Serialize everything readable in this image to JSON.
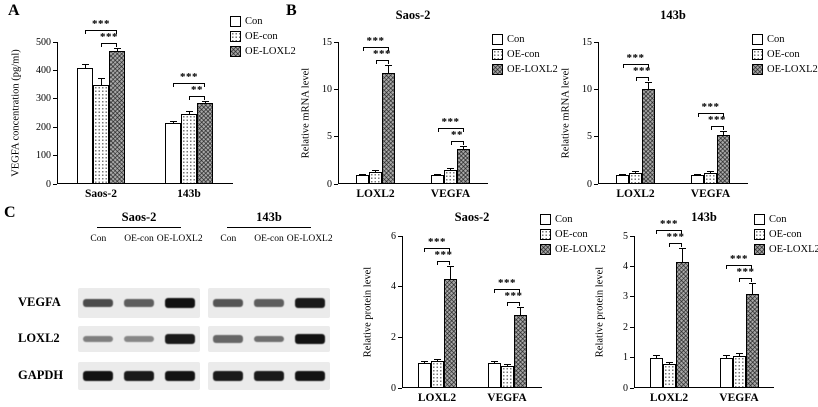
{
  "panels": {
    "a": "A",
    "b": "B",
    "c": "C"
  },
  "colors": {
    "background": "#ffffff",
    "bar_outline": "#000000",
    "con_fill": "#ffffff",
    "oe_con_fill": "dotted-white",
    "oe_loxl2_fill": "#a8a8a8",
    "band_color": "#0a0a0a"
  },
  "legend_labels": [
    "Con",
    "OE-con",
    "OE-LOXL2"
  ],
  "chart_data": [
    {
      "id": "panelA",
      "type": "bar",
      "title": "",
      "ylabel": "VEGFA concentration (pg/ml)",
      "ylim": [
        0,
        500
      ],
      "yticks": [
        0,
        100,
        200,
        300,
        400,
        500
      ],
      "categories": [
        "Saos-2",
        "143b"
      ],
      "series": [
        {
          "name": "Con",
          "values": [
            410,
            215
          ],
          "errors": [
            12,
            8
          ]
        },
        {
          "name": "OE-con",
          "values": [
            350,
            247
          ],
          "errors": [
            22,
            10
          ]
        },
        {
          "name": "OE-LOXL2",
          "values": [
            468,
            285
          ],
          "errors": [
            10,
            8
          ]
        }
      ],
      "significance": [
        {
          "category": "Saos-2",
          "from": "Con",
          "to": "OE-LOXL2",
          "label": "***"
        },
        {
          "category": "Saos-2",
          "from": "OE-con",
          "to": "OE-LOXL2",
          "label": "***"
        },
        {
          "category": "143b",
          "from": "Con",
          "to": "OE-LOXL2",
          "label": "***"
        },
        {
          "category": "143b",
          "from": "OE-con",
          "to": "OE-LOXL2",
          "label": "**"
        }
      ],
      "legend_position": "right"
    },
    {
      "id": "b_saos2",
      "type": "bar",
      "title": "Saos-2",
      "ylabel": "Relative mRNA level",
      "ylim": [
        0,
        15
      ],
      "yticks": [
        0,
        5,
        10,
        15
      ],
      "categories": [
        "LOXL2",
        "VEGFA"
      ],
      "series": [
        {
          "name": "Con",
          "values": [
            1.0,
            1.0
          ],
          "errors": [
            0.1,
            0.1
          ]
        },
        {
          "name": "OE-con",
          "values": [
            1.3,
            1.5
          ],
          "errors": [
            0.15,
            0.2
          ]
        },
        {
          "name": "OE-LOXL2",
          "values": [
            11.7,
            3.7
          ],
          "errors": [
            0.9,
            0.3
          ]
        }
      ],
      "significance": [
        {
          "category": "LOXL2",
          "from": "Con",
          "to": "OE-LOXL2",
          "label": "***"
        },
        {
          "category": "LOXL2",
          "from": "OE-con",
          "to": "OE-LOXL2",
          "label": "***"
        },
        {
          "category": "VEGFA",
          "from": "Con",
          "to": "OE-LOXL2",
          "label": "***"
        },
        {
          "category": "VEGFA",
          "from": "OE-con",
          "to": "OE-LOXL2",
          "label": "**"
        }
      ],
      "legend_position": "right"
    },
    {
      "id": "b_143b",
      "type": "bar",
      "title": "143b",
      "ylabel": "Relative mRNA level",
      "ylim": [
        0,
        15
      ],
      "yticks": [
        0,
        5,
        10,
        15
      ],
      "categories": [
        "LOXL2",
        "VEGFA"
      ],
      "series": [
        {
          "name": "Con",
          "values": [
            1.0,
            1.0
          ],
          "errors": [
            0.1,
            0.1
          ]
        },
        {
          "name": "OE-con",
          "values": [
            1.2,
            1.2
          ],
          "errors": [
            0.15,
            0.15
          ]
        },
        {
          "name": "OE-LOXL2",
          "values": [
            10.0,
            5.2
          ],
          "errors": [
            0.8,
            0.4
          ]
        }
      ],
      "significance": [
        {
          "category": "LOXL2",
          "from": "Con",
          "to": "OE-LOXL2",
          "label": "***"
        },
        {
          "category": "LOXL2",
          "from": "OE-con",
          "to": "OE-LOXL2",
          "label": "***"
        },
        {
          "category": "VEGFA",
          "from": "Con",
          "to": "OE-LOXL2",
          "label": "***"
        },
        {
          "category": "VEGFA",
          "from": "OE-con",
          "to": "OE-LOXL2",
          "label": "***"
        }
      ],
      "legend_position": "right"
    },
    {
      "id": "c_saos2",
      "type": "bar",
      "title": "Saos-2",
      "ylabel": "Relative protein level",
      "ylim": [
        0,
        6
      ],
      "yticks": [
        0,
        2,
        4,
        6
      ],
      "categories": [
        "LOXL2",
        "VEGFA"
      ],
      "series": [
        {
          "name": "Con",
          "values": [
            1.0,
            1.0
          ],
          "errors": [
            0.08,
            0.08
          ]
        },
        {
          "name": "OE-con",
          "values": [
            1.05,
            0.85
          ],
          "errors": [
            0.1,
            0.1
          ]
        },
        {
          "name": "OE-LOXL2",
          "values": [
            4.3,
            2.9
          ],
          "errors": [
            0.5,
            0.3
          ]
        }
      ],
      "significance": [
        {
          "category": "LOXL2",
          "from": "Con",
          "to": "OE-LOXL2",
          "label": "***"
        },
        {
          "category": "LOXL2",
          "from": "OE-con",
          "to": "OE-LOXL2",
          "label": "***"
        },
        {
          "category": "VEGFA",
          "from": "Con",
          "to": "OE-LOXL2",
          "label": "***"
        },
        {
          "category": "VEGFA",
          "from": "OE-con",
          "to": "OE-LOXL2",
          "label": "***"
        }
      ],
      "legend_position": "right"
    },
    {
      "id": "c_143b",
      "type": "bar",
      "title": "143b",
      "ylabel": "Relative protein level",
      "ylim": [
        0,
        5
      ],
      "yticks": [
        0,
        1,
        2,
        3,
        4,
        5
      ],
      "categories": [
        "LOXL2",
        "VEGFA"
      ],
      "series": [
        {
          "name": "Con",
          "values": [
            1.0,
            1.0
          ],
          "errors": [
            0.1,
            0.08
          ]
        },
        {
          "name": "OE-con",
          "values": [
            0.78,
            1.05
          ],
          "errors": [
            0.08,
            0.1
          ]
        },
        {
          "name": "OE-LOXL2",
          "values": [
            4.15,
            3.1
          ],
          "errors": [
            0.45,
            0.35
          ]
        }
      ],
      "significance": [
        {
          "category": "LOXL2",
          "from": "Con",
          "to": "OE-LOXL2",
          "label": "***"
        },
        {
          "category": "LOXL2",
          "from": "OE-con",
          "to": "OE-LOXL2",
          "label": "***"
        },
        {
          "category": "VEGFA",
          "from": "Con",
          "to": "OE-LOXL2",
          "label": "***"
        },
        {
          "category": "VEGFA",
          "from": "OE-con",
          "to": "OE-LOXL2",
          "label": "***"
        }
      ],
      "legend_position": "right"
    }
  ],
  "western_blot": {
    "cell_line_headers": [
      "Saos-2",
      "143b"
    ],
    "lane_labels": [
      "Con",
      "OE-con",
      "OE-LOXL2"
    ],
    "rows": [
      {
        "protein": "VEGFA",
        "band_intensities": [
          [
            0.6,
            0.5,
            0.95
          ],
          [
            0.55,
            0.5,
            0.9
          ]
        ]
      },
      {
        "protein": "LOXL2",
        "band_intensities": [
          [
            0.3,
            0.25,
            0.9
          ],
          [
            0.45,
            0.4,
            0.95
          ]
        ]
      },
      {
        "protein": "GAPDH",
        "band_intensities": [
          [
            0.95,
            0.9,
            0.95
          ],
          [
            0.9,
            0.9,
            0.95
          ]
        ]
      }
    ]
  }
}
